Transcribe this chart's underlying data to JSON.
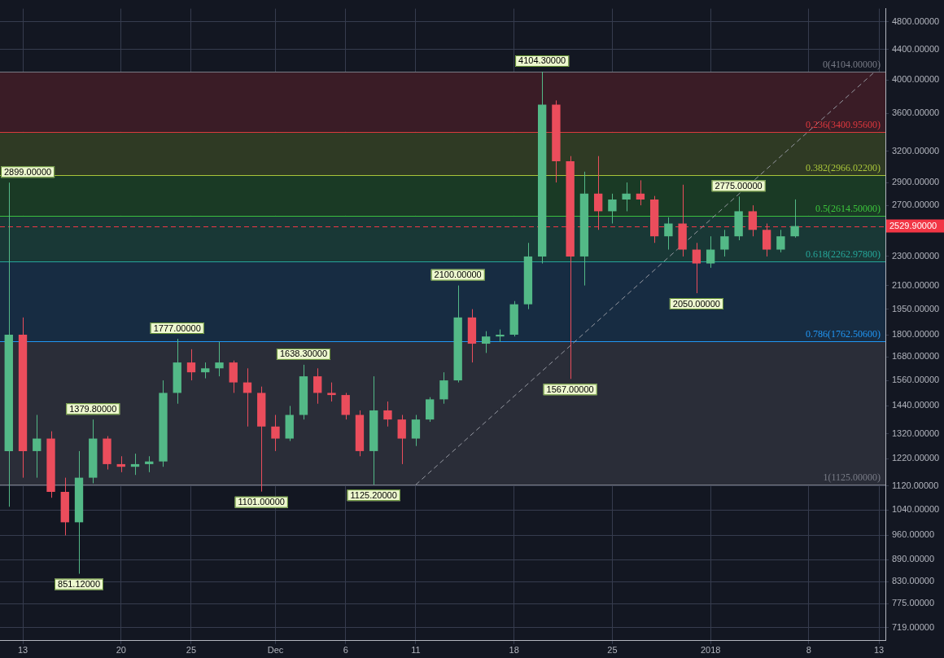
{
  "chart_data": {
    "type": "candlestick",
    "x": [
      "2017-11-12",
      "2017-11-13",
      "2017-11-14",
      "2017-11-15",
      "2017-11-16",
      "2017-11-17",
      "2017-11-18",
      "2017-11-19",
      "2017-11-20",
      "2017-11-21",
      "2017-11-22",
      "2017-11-23",
      "2017-11-24",
      "2017-11-25",
      "2017-11-26",
      "2017-11-27",
      "2017-11-28",
      "2017-11-29",
      "2017-11-30",
      "2017-12-01",
      "2017-12-02",
      "2017-12-03",
      "2017-12-04",
      "2017-12-05",
      "2017-12-06",
      "2017-12-07",
      "2017-12-08",
      "2017-12-09",
      "2017-12-10",
      "2017-12-11",
      "2017-12-12",
      "2017-12-13",
      "2017-12-14",
      "2017-12-15",
      "2017-12-16",
      "2017-12-17",
      "2017-12-18",
      "2017-12-19",
      "2017-12-20",
      "2017-12-21",
      "2017-12-22",
      "2017-12-23",
      "2017-12-24",
      "2017-12-25",
      "2017-12-26",
      "2017-12-27",
      "2017-12-28",
      "2017-12-29",
      "2017-12-30",
      "2017-12-31",
      "2018-01-01",
      "2018-01-02",
      "2018-01-03",
      "2018-01-04",
      "2018-01-05",
      "2018-01-06",
      "2018-01-07"
    ],
    "ohlc": [
      [
        1250,
        2899,
        1050,
        1800
      ],
      [
        1800,
        1900,
        1150,
        1250
      ],
      [
        1250,
        1400,
        1150,
        1300
      ],
      [
        1300,
        1330,
        1080,
        1100
      ],
      [
        1100,
        1150,
        960,
        1000
      ],
      [
        1000,
        1250,
        851.12,
        1150
      ],
      [
        1150,
        1379.8,
        1130,
        1300
      ],
      [
        1300,
        1310,
        1180,
        1200
      ],
      [
        1200,
        1230,
        1170,
        1190
      ],
      [
        1190,
        1240,
        1160,
        1200
      ],
      [
        1200,
        1230,
        1170,
        1210
      ],
      [
        1210,
        1560,
        1190,
        1500
      ],
      [
        1500,
        1777,
        1450,
        1650
      ],
      [
        1650,
        1720,
        1560,
        1600
      ],
      [
        1600,
        1650,
        1570,
        1620
      ],
      [
        1620,
        1760,
        1580,
        1650
      ],
      [
        1650,
        1660,
        1500,
        1550
      ],
      [
        1550,
        1620,
        1350,
        1500
      ],
      [
        1500,
        1530,
        1101,
        1350
      ],
      [
        1350,
        1400,
        1250,
        1300
      ],
      [
        1300,
        1440,
        1290,
        1400
      ],
      [
        1400,
        1638.3,
        1380,
        1580
      ],
      [
        1580,
        1620,
        1450,
        1500
      ],
      [
        1500,
        1550,
        1460,
        1490
      ],
      [
        1490,
        1500,
        1380,
        1400
      ],
      [
        1400,
        1420,
        1230,
        1250
      ],
      [
        1250,
        1580,
        1125.2,
        1420
      ],
      [
        1420,
        1460,
        1350,
        1380
      ],
      [
        1380,
        1400,
        1200,
        1300
      ],
      [
        1300,
        1400,
        1270,
        1380
      ],
      [
        1380,
        1480,
        1370,
        1470
      ],
      [
        1470,
        1600,
        1450,
        1560
      ],
      [
        1560,
        2100,
        1550,
        1900
      ],
      [
        1900,
        1950,
        1650,
        1750
      ],
      [
        1750,
        1820,
        1700,
        1790
      ],
      [
        1790,
        1830,
        1760,
        1800
      ],
      [
        1800,
        2000,
        1790,
        1980
      ],
      [
        1980,
        2400,
        1950,
        2300
      ],
      [
        2300,
        4104.3,
        2250,
        3700
      ],
      [
        3700,
        3750,
        2900,
        3100
      ],
      [
        3100,
        3150,
        1567,
        2300
      ],
      [
        2300,
        3000,
        2100,
        2800
      ],
      [
        2800,
        3150,
        2500,
        2650
      ],
      [
        2650,
        2800,
        2550,
        2750
      ],
      [
        2750,
        2900,
        2650,
        2800
      ],
      [
        2800,
        2920,
        2700,
        2750
      ],
      [
        2750,
        2780,
        2400,
        2450
      ],
      [
        2450,
        2600,
        2350,
        2550
      ],
      [
        2550,
        2880,
        2300,
        2350
      ],
      [
        2350,
        2400,
        2050,
        2250
      ],
      [
        2250,
        2450,
        2220,
        2350
      ],
      [
        2350,
        2500,
        2300,
        2450
      ],
      [
        2450,
        2775,
        2420,
        2650
      ],
      [
        2650,
        2700,
        2450,
        2500
      ],
      [
        2500,
        2550,
        2300,
        2350
      ],
      [
        2350,
        2500,
        2330,
        2450
      ],
      [
        2450,
        2750,
        2440,
        2529.9
      ]
    ],
    "series": [
      {
        "type": "line",
        "color": "#9598a1",
        "line_style": "dashed",
        "marker": "none",
        "x": [
          "2017-12-11",
          "2018-01-12T17:00"
        ],
        "values": [
          1125,
          4104
        ]
      }
    ],
    "log": "y",
    "xlim": [
      "2017-11-11T09:00",
      "2018-01-13T11:00"
    ],
    "xticks": [
      {
        "value": "2017-11-13",
        "label": "13"
      },
      {
        "value": "2017-11-20",
        "label": "20"
      },
      {
        "value": "2017-11-25",
        "label": "25"
      },
      {
        "value": "2017-12-01",
        "label": "Dec"
      },
      {
        "value": "2017-12-06",
        "label": "6"
      },
      {
        "value": "2017-12-11",
        "label": "11"
      },
      {
        "value": "2017-12-18",
        "label": "18"
      },
      {
        "value": "2017-12-25",
        "label": "25"
      },
      {
        "value": "2018-01-01",
        "label": "2018"
      },
      {
        "value": "2018-01-08",
        "label": "8"
      },
      {
        "value": "2018-01-13",
        "label": "13"
      }
    ],
    "ylim": [
      690,
      5000
    ],
    "yticks": [
      {
        "value": 719,
        "label": "719.00000"
      },
      {
        "value": 775,
        "label": "775.00000"
      },
      {
        "value": 830,
        "label": "830.00000"
      },
      {
        "value": 890,
        "label": "890.00000"
      },
      {
        "value": 960,
        "label": "960.00000"
      },
      {
        "value": 1040,
        "label": "1040.00000"
      },
      {
        "value": 1120,
        "label": "1120.00000"
      },
      {
        "value": 1220,
        "label": "1220.00000"
      },
      {
        "value": 1320,
        "label": "1320.00000"
      },
      {
        "value": 1440,
        "label": "1440.00000"
      },
      {
        "value": 1560,
        "label": "1560.00000"
      },
      {
        "value": 1680,
        "label": "1680.00000"
      },
      {
        "value": 1800,
        "label": "1800.00000"
      },
      {
        "value": 1950,
        "label": "1950.00000"
      },
      {
        "value": 2100,
        "label": "2100.00000"
      },
      {
        "value": 2300,
        "label": "2300.00000"
      },
      {
        "value": 2700,
        "label": "2700.00000"
      },
      {
        "value": 2900,
        "label": "2900.00000"
      },
      {
        "value": 3200,
        "label": "3200.00000"
      },
      {
        "value": 3600,
        "label": "3600.00000"
      },
      {
        "value": 4000,
        "label": "4000.00000"
      },
      {
        "value": 4400,
        "label": "4400.00000"
      },
      {
        "value": 4800,
        "label": "4800.00000"
      }
    ],
    "grid": true,
    "legend": false,
    "bands": [
      {
        "axis": "y",
        "from": 3400.956,
        "to": 4104,
        "color": "#3a1c26"
      },
      {
        "axis": "y",
        "from": 2966.022,
        "to": 3400.956,
        "color": "#2f3a24"
      },
      {
        "axis": "y",
        "from": 2614.5,
        "to": 2966.022,
        "color": "#1a3a25"
      },
      {
        "axis": "y",
        "from": 2262.978,
        "to": 2614.5,
        "color": "#193836"
      },
      {
        "axis": "y",
        "from": 1762.506,
        "to": 2262.978,
        "color": "#172c42"
      },
      {
        "axis": "y",
        "from": 1125,
        "to": 1762.506,
        "color": "#2a2d38"
      }
    ],
    "ref_lines": [
      {
        "axis": "y",
        "value": 4104,
        "label": "0(4104.00000)",
        "color": "#787b86"
      },
      {
        "axis": "y",
        "value": 3400.956,
        "label": "0.236(3400.95600)",
        "color": "#e0393e"
      },
      {
        "axis": "y",
        "value": 2966.022,
        "label": "0.382(2966.02200)",
        "color": "#a8c43a"
      },
      {
        "axis": "y",
        "value": 2614.5,
        "label": "0.5(2614.50000)",
        "color": "#3cc43c"
      },
      {
        "axis": "y",
        "value": 2262.978,
        "label": "0.618(2262.97800)",
        "color": "#26a69a"
      },
      {
        "axis": "y",
        "value": 1762.506,
        "label": "0.786(1762.50600)",
        "color": "#2196f3"
      },
      {
        "axis": "y",
        "value": 1125,
        "label": "1(1125.00000)",
        "color": "#787b86"
      },
      {
        "axis": "y",
        "value": 2529.9,
        "label": "2529.90000",
        "color": "#f23645",
        "line_style": "dashed"
      }
    ],
    "annotations": [
      {
        "text": "2899.00000",
        "x": "2017-11-12",
        "y": 2899
      },
      {
        "text": "851.12000",
        "x": "2017-11-17",
        "y": 851.12
      },
      {
        "text": "1379.80000",
        "x": "2017-11-18",
        "y": 1379.8
      },
      {
        "text": "1777.00000",
        "x": "2017-11-24",
        "y": 1777
      },
      {
        "text": "1101.00000",
        "x": "2017-11-30",
        "y": 1101
      },
      {
        "text": "1638.30000",
        "x": "2017-12-03",
        "y": 1638.3
      },
      {
        "text": "1125.20000",
        "x": "2017-12-08",
        "y": 1125.2
      },
      {
        "text": "2100.00000",
        "x": "2017-12-14",
        "y": 2100
      },
      {
        "text": "4104.30000",
        "x": "2017-12-20",
        "y": 4104.3
      },
      {
        "text": "1567.00000",
        "x": "2017-12-22",
        "y": 1567
      },
      {
        "text": "2050.00000",
        "x": "2017-12-31",
        "y": 2050
      },
      {
        "text": "2775.00000",
        "x": "2018-01-03",
        "y": 2775
      }
    ]
  }
}
